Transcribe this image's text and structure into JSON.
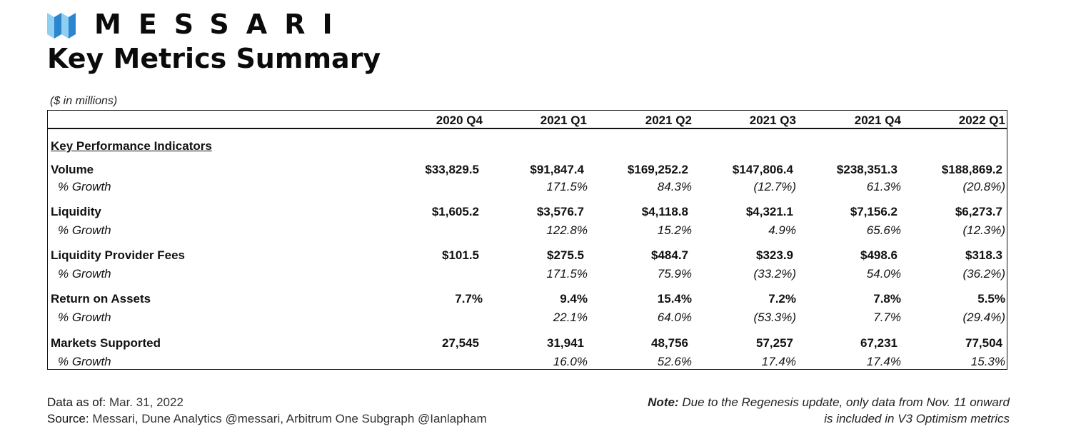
{
  "brand": {
    "name": "MESSARI"
  },
  "title": "Key Metrics Summary",
  "unit_note": "($ in millions)",
  "columns": [
    "2020 Q4",
    "2021 Q1",
    "2021 Q2",
    "2021 Q3",
    "2021 Q4",
    "2022 Q1"
  ],
  "section": "Key Performance Indicators",
  "metrics": [
    {
      "label": "Volume",
      "values": [
        "$33,829.5",
        "$91,847.4",
        "$169,252.2",
        "$147,806.4",
        "$238,351.3",
        "$188,869.2"
      ],
      "growth_label": "% Growth",
      "growth": [
        "",
        "171.5%",
        "84.3%",
        "(12.7%)",
        "61.3%",
        "(20.8%)"
      ]
    },
    {
      "label": "Liquidity",
      "values": [
        "$1,605.2",
        "$3,576.7",
        "$4,118.8",
        "$4,321.1",
        "$7,156.2",
        "$6,273.7"
      ],
      "growth_label": "% Growth",
      "growth": [
        "",
        "122.8%",
        "15.2%",
        "4.9%",
        "65.6%",
        "(12.3%)"
      ]
    },
    {
      "label": "Liquidity Provider Fees",
      "values": [
        "$101.5",
        "$275.5",
        "$484.7",
        "$323.9",
        "$498.6",
        "$318.3"
      ],
      "growth_label": "% Growth",
      "growth": [
        "",
        "171.5%",
        "75.9%",
        "(33.2%)",
        "54.0%",
        "(36.2%)"
      ]
    },
    {
      "label": "Return on Assets",
      "values": [
        "7.7%",
        "9.4%",
        "15.4%",
        "7.2%",
        "7.8%",
        "5.5%"
      ],
      "growth_label": "% Growth",
      "growth": [
        "",
        "22.1%",
        "64.0%",
        "(53.3%)",
        "7.7%",
        "(29.4%)"
      ]
    },
    {
      "label": "Markets Supported",
      "values": [
        "27,545",
        "31,941",
        "48,756",
        "57,257",
        "67,231",
        "77,504"
      ],
      "growth_label": "% Growth",
      "growth": [
        "",
        "16.0%",
        "52.6%",
        "17.4%",
        "17.4%",
        "15.3%"
      ]
    }
  ],
  "footer": {
    "data_as_of_label": "Data as of:",
    "data_as_of": "Mar. 31, 2022",
    "source_label": "Source:",
    "source": "Messari, Dune Analytics @messari, Arbitrum One Subgraph @Ianlapham",
    "note_label": "Note:",
    "note": "Due to the Regenesis update, only data from Nov. 11 onward is included in V3 Optimism metrics"
  },
  "colors": {
    "logo_light": "#7cc3ec",
    "logo_dark": "#1f78c1",
    "text": "#111111"
  }
}
